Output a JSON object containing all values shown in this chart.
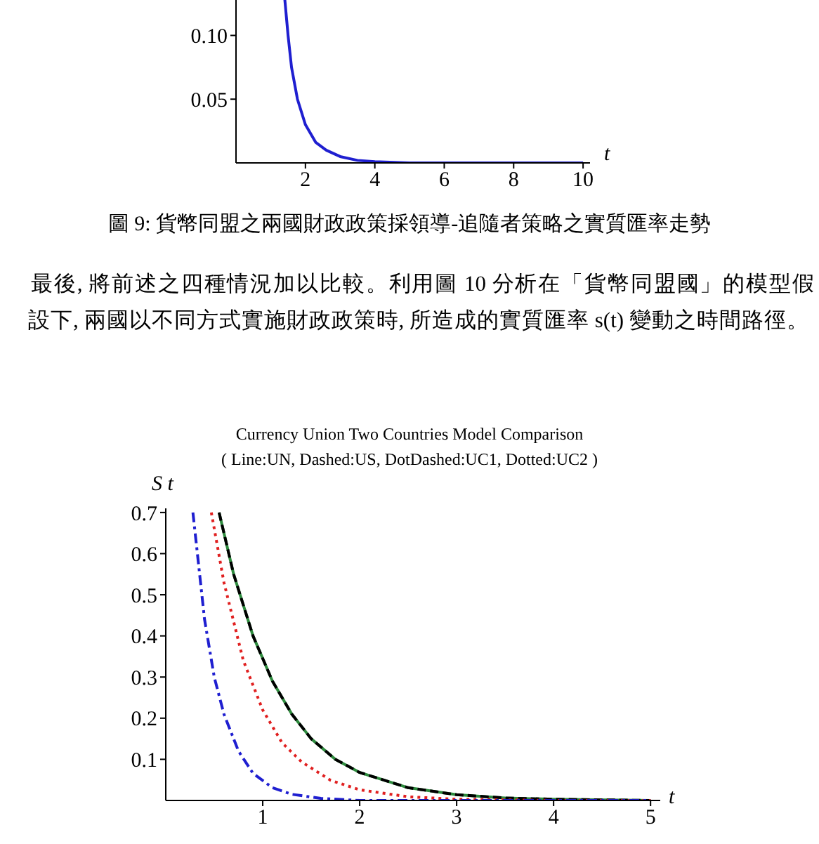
{
  "chart_data": [
    {
      "type": "line",
      "xlabel": "t",
      "xlim": [
        0,
        10.2
      ],
      "ylim": [
        0,
        0.13
      ],
      "xticks": [
        2,
        4,
        6,
        8,
        10
      ],
      "yticks": [
        0.05,
        {
          "value": 0.1,
          "label": "0.10"
        }
      ],
      "marker": "none",
      "annotations": [
        "圖 9: 貨幣同盟之兩國財政政策採領導-追隨者策略之實質匯率走勢",
        "最後, 將前述之四種情況加以比較。利用圖 10 分析在「貨幣同盟國」的模型假設下, 兩國以不同方式實施財政政策時, 所造成的實質匯率 s(t) 變動之時間路徑。"
      ],
      "series": [
        {
          "color": "#1f1fd0",
          "line_style": "solid",
          "x": [
            1.4,
            1.5,
            1.6,
            1.77,
            2,
            2.3,
            2.6,
            3,
            3.5,
            4,
            5,
            6,
            8,
            10
          ],
          "values": [
            0.13,
            0.1,
            0.075,
            0.05,
            0.03,
            0.016,
            0.01,
            0.005,
            0.002,
            0.001,
            0,
            0,
            0,
            0
          ]
        }
      ]
    },
    {
      "type": "line",
      "title": "Currency Union Two Countries Model Comparison",
      "subtitle": "( Line:UN, Dashed:US, DotDashed:UC1, Dotted:UC2 )",
      "xlabel": "t",
      "ylabel": "S t",
      "xlim": [
        0,
        5.1
      ],
      "ylim": [
        0,
        0.71
      ],
      "xticks": [
        1,
        2,
        3,
        4,
        5
      ],
      "yticks": [
        0.1,
        0.2,
        0.3,
        0.4,
        0.5,
        0.6,
        0.7
      ],
      "marker": "none",
      "series": [
        {
          "color": "#2e8b3e",
          "line_style": "solid",
          "x": [
            0.55,
            0.7,
            0.9,
            1.1,
            1.3,
            1.5,
            1.75,
            2,
            2.5,
            3,
            3.5,
            4,
            5
          ],
          "values": [
            0.7,
            0.55,
            0.4,
            0.29,
            0.21,
            0.15,
            0.1,
            0.068,
            0.031,
            0.014,
            0.006,
            0.003,
            0
          ]
        },
        {
          "color": "#000000",
          "line_style": "dashed",
          "x": [
            0.55,
            0.7,
            0.9,
            1.1,
            1.3,
            1.5,
            1.75,
            2,
            2.5,
            3,
            3.5,
            4,
            5
          ],
          "values": [
            0.7,
            0.55,
            0.4,
            0.29,
            0.21,
            0.15,
            0.1,
            0.068,
            0.031,
            0.014,
            0.006,
            0.003,
            0
          ]
        },
        {
          "color": "#e02020",
          "line_style": "dotted",
          "x": [
            0.47,
            0.6,
            0.8,
            1,
            1.2,
            1.4,
            1.7,
            2,
            2.5,
            3,
            4,
            5
          ],
          "values": [
            0.7,
            0.53,
            0.34,
            0.22,
            0.14,
            0.094,
            0.049,
            0.026,
            0.009,
            0.003,
            0,
            0
          ]
        },
        {
          "color": "#1f1fd0",
          "line_style": "dashdot",
          "x": [
            0.28,
            0.4,
            0.5,
            0.6,
            0.75,
            0.9,
            1.1,
            1.3,
            1.6,
            2,
            3,
            5
          ],
          "values": [
            0.7,
            0.44,
            0.3,
            0.21,
            0.12,
            0.066,
            0.031,
            0.015,
            0.005,
            0,
            0,
            0
          ]
        }
      ]
    }
  ]
}
